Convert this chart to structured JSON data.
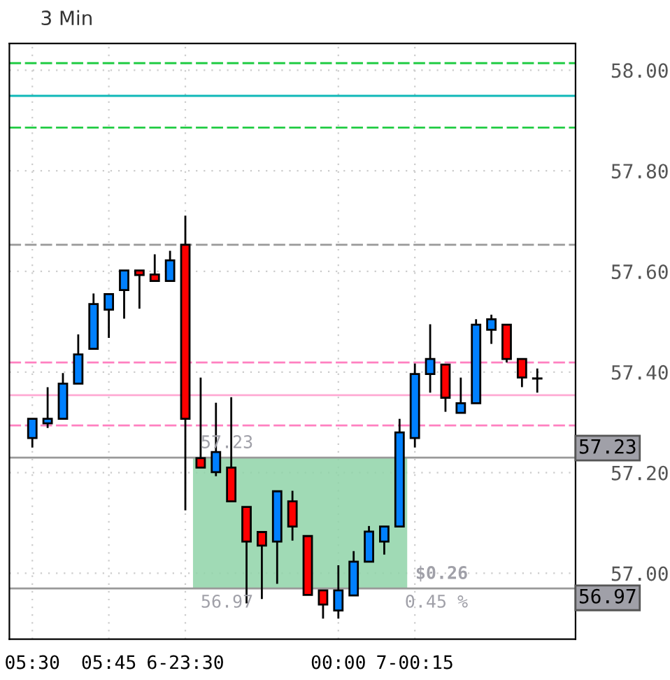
{
  "chart_data": {
    "type": "candlestick",
    "title": "3 Min",
    "categories": [
      "05:30",
      null,
      null,
      null,
      null,
      "05:45",
      null,
      null,
      null,
      null,
      "6-23:30",
      null,
      null,
      null,
      null,
      null,
      null,
      null,
      null,
      null,
      "00:00",
      null,
      null,
      null,
      null,
      "7-00:15",
      null,
      null,
      null,
      null,
      null,
      null,
      null,
      null
    ],
    "ohlc": [
      [
        57.269,
        57.307,
        57.25,
        57.307
      ],
      [
        57.298,
        57.37,
        57.289,
        57.307
      ],
      [
        57.307,
        57.398,
        57.307,
        57.377
      ],
      [
        57.377,
        57.475,
        57.377,
        57.435
      ],
      [
        57.446,
        57.556,
        57.446,
        57.535
      ],
      [
        57.524,
        57.555,
        57.468,
        57.555
      ],
      [
        57.563,
        57.602,
        57.506,
        57.602
      ],
      [
        57.602,
        57.602,
        57.526,
        57.593
      ],
      [
        57.594,
        57.634,
        57.581,
        57.581
      ],
      [
        57.581,
        57.641,
        57.581,
        57.622
      ],
      [
        57.653,
        57.711,
        57.125,
        57.307
      ],
      [
        57.229,
        57.389,
        57.21,
        57.21
      ],
      [
        57.201,
        57.339,
        57.193,
        57.241
      ],
      [
        57.21,
        57.35,
        57.143,
        57.143
      ],
      [
        57.132,
        57.132,
        56.94,
        57.063
      ],
      [
        57.082,
        57.082,
        56.949,
        57.055
      ],
      [
        57.063,
        57.163,
        56.979,
        57.163
      ],
      [
        57.143,
        57.164,
        57.065,
        57.093
      ],
      [
        57.074,
        57.074,
        56.957,
        56.957
      ],
      [
        56.966,
        56.966,
        56.91,
        56.938
      ],
      [
        56.926,
        57.016,
        56.91,
        56.966
      ],
      [
        56.956,
        57.044,
        56.956,
        57.023
      ],
      [
        57.023,
        57.094,
        57.023,
        57.083
      ],
      [
        57.063,
        57.093,
        57.037,
        57.093
      ],
      [
        57.093,
        57.307,
        57.093,
        57.28
      ],
      [
        57.269,
        57.417,
        57.25,
        57.396
      ],
      [
        57.396,
        57.495,
        57.359,
        57.426
      ],
      [
        57.415,
        57.415,
        57.321,
        57.349
      ],
      [
        57.319,
        57.389,
        57.319,
        57.338
      ],
      [
        57.338,
        57.505,
        57.338,
        57.494
      ],
      [
        57.484,
        57.514,
        57.456,
        57.505
      ],
      [
        57.494,
        57.494,
        57.419,
        57.426
      ],
      [
        57.426,
        57.426,
        57.37,
        57.389
      ],
      [
        57.387,
        57.407,
        57.359,
        57.387
      ]
    ],
    "colors": [
      "#0080ff",
      "#0080ff",
      "#0080ff",
      "#0080ff",
      "#0080ff",
      "#0080ff",
      "#0080ff",
      "#ff0000",
      "#ff0000",
      "#0080ff",
      "#ff0000",
      "#ff0000",
      "#0080ff",
      "#ff0000",
      "#ff0000",
      "#ff0000",
      "#0080ff",
      "#ff0000",
      "#ff0000",
      "#ff0000",
      "#0080ff",
      "#0080ff",
      "#0080ff",
      "#0080ff",
      "#0080ff",
      "#0080ff",
      "#0080ff",
      "#ff0000",
      "#0080ff",
      "#0080ff",
      "#0080ff",
      "#ff0000",
      "#ff0000",
      "#0080ff"
    ],
    "ylim": [
      56.869,
      58.053
    ],
    "yticks": [
      {
        "value": 57.0,
        "label": "57.00"
      },
      {
        "value": 57.2,
        "label": "57.20"
      },
      {
        "value": 57.4,
        "label": "57.40"
      },
      {
        "value": 57.6,
        "label": "57.60"
      },
      {
        "value": 57.8,
        "label": "57.80"
      },
      {
        "value": 58.0,
        "label": "58.00"
      }
    ],
    "grid": true,
    "ref_lines": [
      {
        "axis": "y",
        "value": 58.014,
        "color": "#22cc44",
        "line_style": "dashed"
      },
      {
        "axis": "y",
        "value": 57.949,
        "color": "#10b8b8",
        "line_style": "solid"
      },
      {
        "axis": "y",
        "value": 57.886,
        "color": "#22cc44",
        "line_style": "dashed"
      },
      {
        "axis": "y",
        "value": 57.653,
        "color": "#999999",
        "line_style": "dashed"
      },
      {
        "axis": "y",
        "value": 57.419,
        "color": "#ff80c0",
        "line_style": "dashed"
      },
      {
        "axis": "y",
        "value": 57.354,
        "color": "#ffaad4",
        "line_style": "solid"
      },
      {
        "axis": "y",
        "value": 57.294,
        "color": "#ff80c0",
        "line_style": "dashed"
      },
      {
        "axis": "y",
        "value": 57.23,
        "label": "57.23",
        "color": "#999999",
        "line_style": "solid"
      },
      {
        "axis": "y",
        "value": 56.97,
        "label": "56.97",
        "color": "#999999",
        "line_style": "solid"
      }
    ],
    "bands": [
      {
        "axis": "y",
        "from": 56.97,
        "to": 57.23,
        "color": "#8fd3a8"
      }
    ],
    "annotations": [
      {
        "text": "57.23",
        "y": 57.23
      },
      {
        "text": "56.97",
        "y": 56.97
      },
      "$0.26",
      "0.45 %"
    ]
  }
}
